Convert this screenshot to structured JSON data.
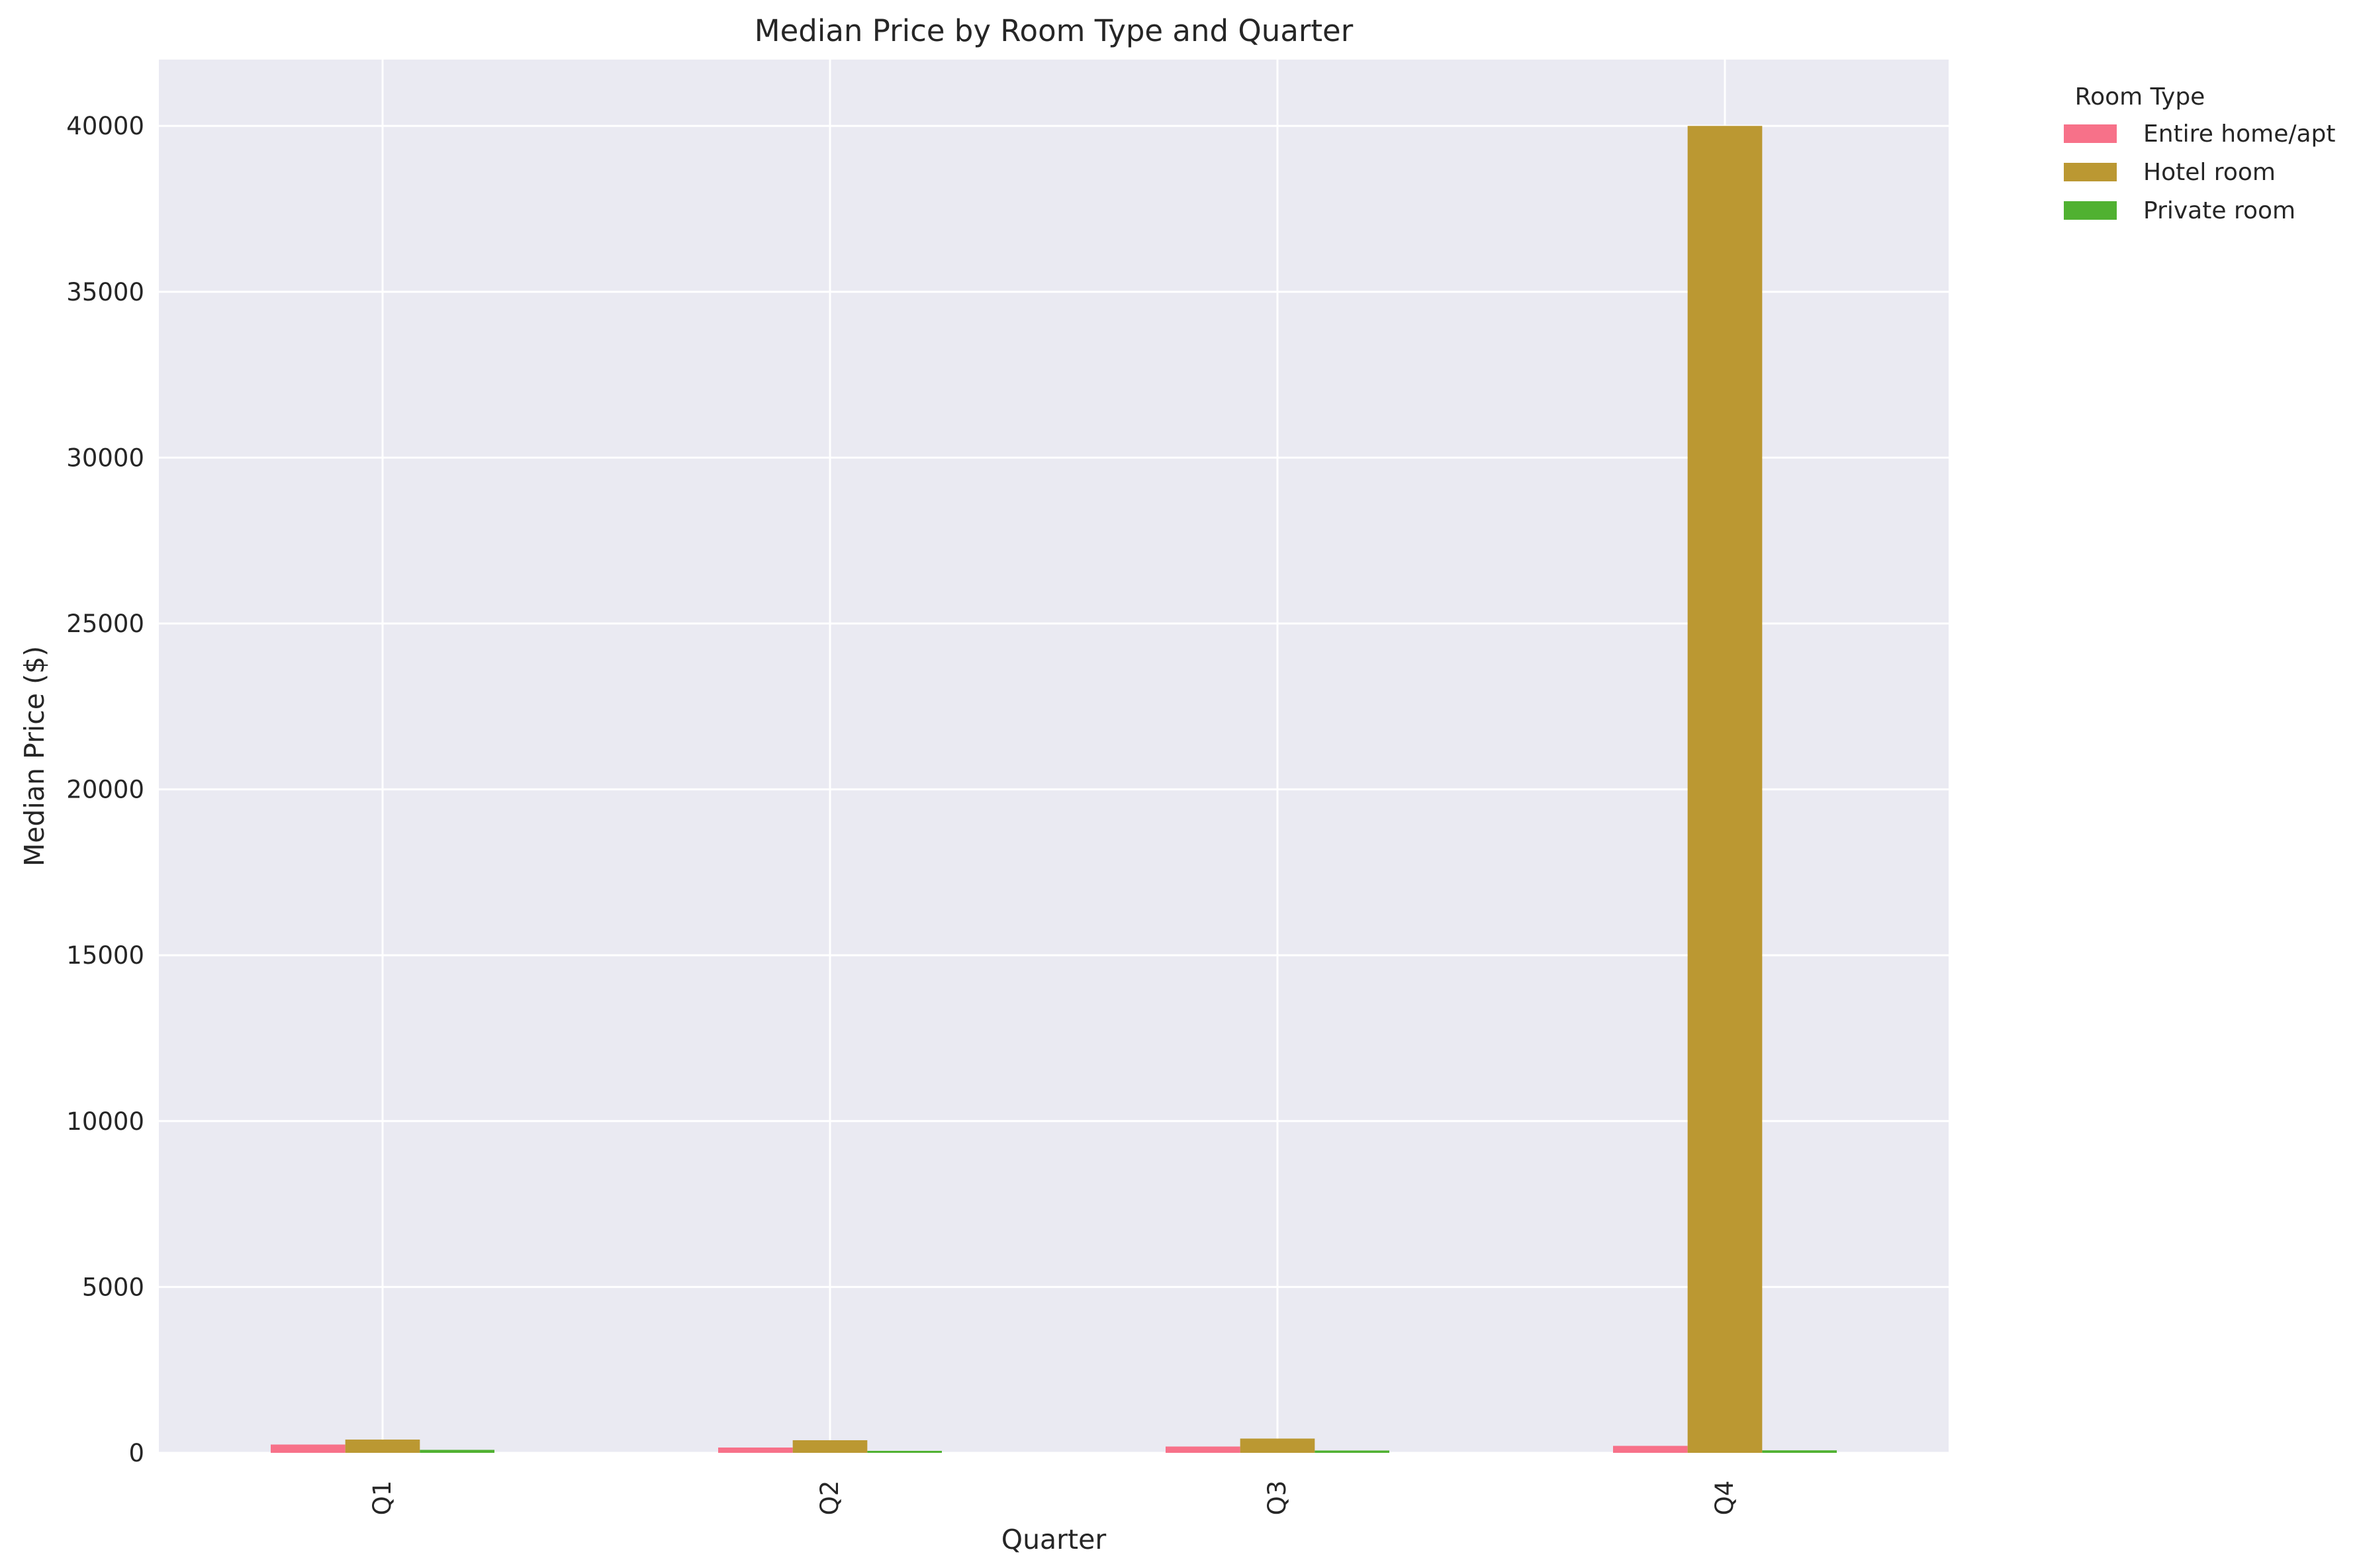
{
  "chart_data": {
    "type": "bar",
    "title": "Median Price by Room Type and Quarter",
    "xlabel": "Quarter",
    "ylabel": "Median Price ($)",
    "categories": [
      "Q1",
      "Q2",
      "Q3",
      "Q4"
    ],
    "series": [
      {
        "name": "Entire home/apt",
        "color": "#f77189",
        "values": [
          250,
          160,
          190,
          210
        ]
      },
      {
        "name": "Hotel room",
        "color": "#bb9832",
        "values": [
          400,
          380,
          430,
          40000
        ]
      },
      {
        "name": "Private room",
        "color": "#50b131",
        "values": [
          90,
          60,
          70,
          75
        ]
      }
    ],
    "ylim": [
      0,
      42000
    ],
    "yticks": [
      "0",
      "5000",
      "10000",
      "15000",
      "20000",
      "25000",
      "30000",
      "35000",
      "40000"
    ],
    "grid": true,
    "legend": {
      "title": "Room Type",
      "placement": "outside-top-right"
    },
    "colors": {
      "plot_background": "#eaeaf2",
      "grid": "#ffffff"
    }
  }
}
